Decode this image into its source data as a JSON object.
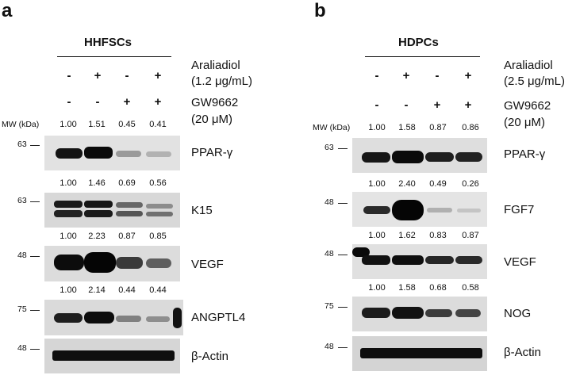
{
  "panels": [
    {
      "letter": "a",
      "header": "HHFSCs",
      "treatment1_name": "Araliadiol",
      "treatment1_dose": "(1.2 μg/mL)",
      "treatment2_name": "GW9662",
      "treatment2_dose": "(20 μM)",
      "row1_signs": [
        "-",
        "+",
        "-",
        "+"
      ],
      "row2_signs": [
        "-",
        "-",
        "+",
        "+"
      ],
      "mw_header": "MW (kDa)",
      "blots": [
        {
          "protein": "PPAR-γ",
          "mw": "63",
          "quant": [
            "1.00",
            "1.51",
            "0.45",
            "0.41"
          ]
        },
        {
          "protein": "K15",
          "mw": "63",
          "quant": [
            "1.00",
            "1.46",
            "0.69",
            "0.56"
          ]
        },
        {
          "protein": "VEGF",
          "mw": "48",
          "quant": [
            "1.00",
            "2.23",
            "0.87",
            "0.85"
          ]
        },
        {
          "protein": "ANGPTL4",
          "mw": "75",
          "quant": [
            "1.00",
            "2.14",
            "0.44",
            "0.44"
          ]
        },
        {
          "protein": "β-Actin",
          "mw": "48",
          "quant": []
        }
      ]
    },
    {
      "letter": "b",
      "header": "HDPCs",
      "treatment1_name": "Araliadiol",
      "treatment1_dose": "(2.5 μg/mL)",
      "treatment2_name": "GW9662",
      "treatment2_dose": "(20 μM)",
      "row1_signs": [
        "-",
        "+",
        "-",
        "+"
      ],
      "row2_signs": [
        "-",
        "-",
        "+",
        "+"
      ],
      "mw_header": "MW (kDa)",
      "blots": [
        {
          "protein": "PPAR-γ",
          "mw": "63",
          "quant": [
            "1.00",
            "1.58",
            "0.87",
            "0.86"
          ]
        },
        {
          "protein": "FGF7",
          "mw": "48",
          "quant": [
            "1.00",
            "2.40",
            "0.49",
            "0.26"
          ]
        },
        {
          "protein": "VEGF",
          "mw": "48",
          "quant": [
            "1.00",
            "1.62",
            "0.83",
            "0.87"
          ]
        },
        {
          "protein": "NOG",
          "mw": "75",
          "quant": [
            "1.00",
            "1.58",
            "0.68",
            "0.58"
          ]
        },
        {
          "protein": "β-Actin",
          "mw": "48",
          "quant": []
        }
      ]
    }
  ]
}
